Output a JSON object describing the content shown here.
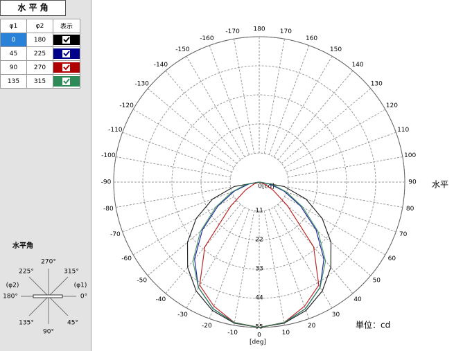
{
  "panel": {
    "title": "水 平 角",
    "table": {
      "header": [
        "φ1",
        "φ2",
        "表示"
      ],
      "rows": [
        [
          0,
          180
        ],
        [
          45,
          225
        ],
        [
          90,
          270
        ],
        [
          135,
          315
        ]
      ]
    },
    "diagram": {
      "title": "水平角",
      "labels": [
        "270°",
        "225°",
        "315°",
        "(φ2)",
        "(φ1)",
        "180°",
        "0°",
        "135°",
        "45°",
        "90°"
      ]
    }
  },
  "chart_data": {
    "type": "polar",
    "theta_label": "[deg]",
    "unit": "単位：cd",
    "axis_title": "水平",
    "theta": [
      -90,
      -80,
      -70,
      -60,
      -50,
      -40,
      -30,
      -20,
      -10,
      0,
      10,
      20,
      30,
      40,
      50,
      60,
      70,
      80,
      90
    ],
    "series": [
      {
        "color": "#000000",
        "values": [
          0,
          9.6,
          18.8,
          27.5,
          35.4,
          42.1,
          47.6,
          51.7,
          54.2,
          55,
          54.2,
          51.7,
          47.6,
          42.1,
          35.4,
          27.5,
          18.8,
          9.6,
          0
        ]
      },
      {
        "color": "#00008b",
        "values": [
          0,
          4,
          10,
          18,
          28,
          38,
          46,
          51,
          54,
          55,
          54,
          51,
          46,
          38,
          28,
          18,
          10,
          4,
          0
        ]
      },
      {
        "color": "#b00000",
        "values": [
          0,
          0,
          2,
          6,
          14,
          32,
          45,
          50,
          54,
          55,
          54,
          50,
          45,
          32,
          14,
          6,
          2,
          0,
          0
        ]
      },
      {
        "color": "#2e8b57",
        "values": [
          0,
          5,
          11,
          19,
          29,
          39,
          46,
          51,
          54,
          55,
          54,
          51,
          46,
          39,
          29,
          19,
          11,
          5,
          0
        ]
      }
    ],
    "rlim": [
      0,
      55
    ],
    "rticks": [
      {
        "value": 0,
        "label": "0[cd]"
      },
      11,
      22,
      33,
      44,
      55
    ],
    "thetaticks": [
      -170,
      -160,
      -150,
      -140,
      -130,
      -120,
      -110,
      -100,
      -90,
      -80,
      -70,
      -60,
      -50,
      -40,
      -30,
      -20,
      -10,
      0,
      10,
      20,
      30,
      40,
      50,
      60,
      70,
      80,
      90,
      100,
      110,
      120,
      130,
      140,
      150,
      160,
      170,
      180
    ],
    "grid": true
  }
}
